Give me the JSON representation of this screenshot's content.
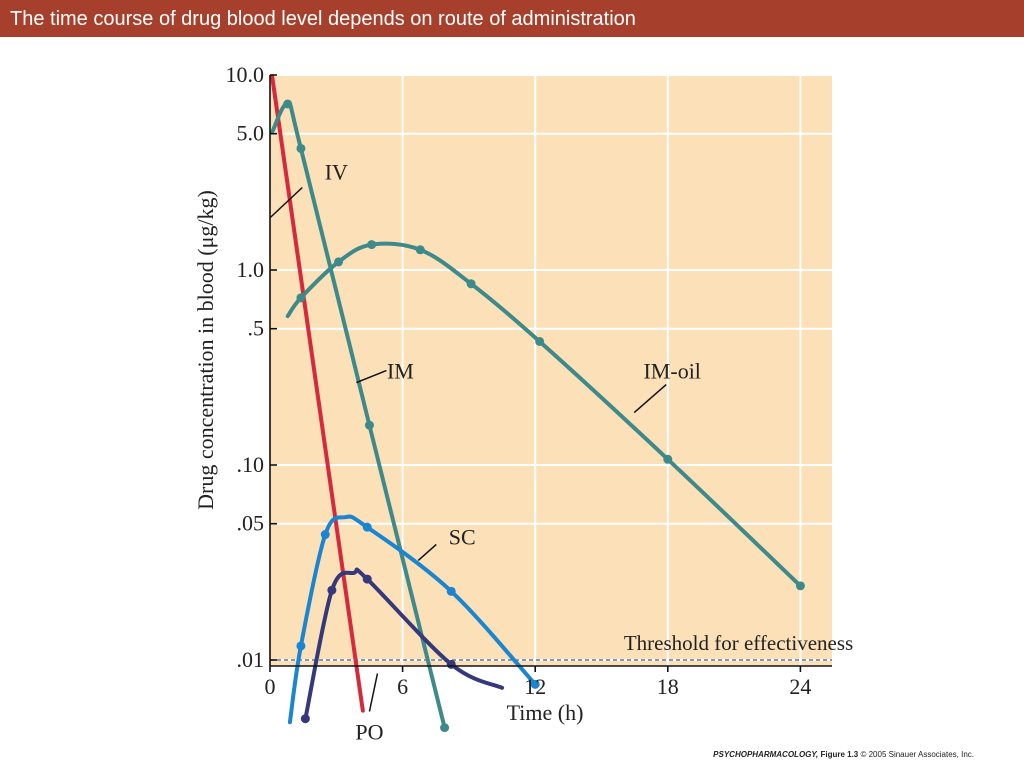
{
  "slide": {
    "title": "The time course of drug blood level depends on route of administration"
  },
  "credit": {
    "book": "PSYCHOPHARMACOLOGY,",
    "figure": "Figure 1.3",
    "copyright": "© 2005 Sinauer Associates, Inc."
  },
  "chart_data": {
    "type": "line",
    "xlabel": "Time (h)",
    "ylabel": "Drug concentration in blood (μg/kg)",
    "y_scale": "log",
    "xlim": [
      0,
      25
    ],
    "ylim": [
      0.003,
      10
    ],
    "x_ticks": [
      {
        "value": 0,
        "label": "0"
      },
      {
        "value": 6,
        "label": "6"
      },
      {
        "value": 12,
        "label": "12"
      },
      {
        "value": 18,
        "label": "18"
      },
      {
        "value": 24,
        "label": "24"
      }
    ],
    "y_ticks": [
      {
        "value": 10,
        "label": "10.0"
      },
      {
        "value": 5,
        "label": "5.0"
      },
      {
        "value": 1,
        "label": "1.0"
      },
      {
        "value": 0.5,
        "label": ".5"
      },
      {
        "value": 0.1,
        "label": ".10"
      },
      {
        "value": 0.05,
        "label": ".05"
      },
      {
        "value": 0.01,
        "label": ".01"
      }
    ],
    "grid": true,
    "threshold": {
      "value": 0.01,
      "label": "Threshold for effectiveness",
      "color": "#3a5a8a"
    },
    "colors": {
      "background": "#fbe0b8",
      "grid": "#ffffff",
      "IV": "#d42a3c",
      "IM": "#3e8a8a",
      "IM-oil": "#3e8a8a",
      "SC": "#1a85d0",
      "PO": "#35387a"
    },
    "series": [
      {
        "name": "IV",
        "line": [
          [
            0.1,
            9.8
          ],
          [
            4.2,
            0.0055
          ]
        ],
        "points": []
      },
      {
        "name": "IM",
        "line": [
          [
            0.1,
            5.1
          ],
          [
            0.8,
            7.1
          ],
          [
            1.4,
            4.2
          ],
          [
            4.5,
            0.16
          ],
          [
            7.9,
            0.0045
          ]
        ],
        "points": [
          [
            0.8,
            7.1
          ],
          [
            1.4,
            4.2
          ],
          [
            4.5,
            0.16
          ],
          [
            7.9,
            0.0045
          ]
        ]
      },
      {
        "name": "IM-oil",
        "line": [
          [
            0.8,
            0.58
          ],
          [
            1.4,
            0.72
          ],
          [
            3.1,
            1.1
          ],
          [
            4.6,
            1.35
          ],
          [
            6.8,
            1.27
          ],
          [
            9.1,
            0.85
          ],
          [
            12.2,
            0.43
          ],
          [
            18.0,
            0.107
          ],
          [
            24.0,
            0.024
          ]
        ],
        "points": [
          [
            1.4,
            0.72
          ],
          [
            3.1,
            1.1
          ],
          [
            4.6,
            1.35
          ],
          [
            6.8,
            1.27
          ],
          [
            9.1,
            0.85
          ],
          [
            12.2,
            0.43
          ],
          [
            18.0,
            0.107
          ],
          [
            24.0,
            0.024
          ]
        ]
      },
      {
        "name": "SC",
        "line": [
          [
            0.9,
            0.0048
          ],
          [
            1.4,
            0.0118
          ],
          [
            2.5,
            0.044
          ],
          [
            3.4,
            0.054
          ],
          [
            4.4,
            0.048
          ],
          [
            8.2,
            0.0225
          ],
          [
            12.0,
            0.0075
          ]
        ],
        "points": [
          [
            1.4,
            0.0118
          ],
          [
            2.5,
            0.044
          ],
          [
            4.4,
            0.048
          ],
          [
            8.2,
            0.0225
          ],
          [
            12.0,
            0.0075
          ]
        ]
      },
      {
        "name": "PO",
        "line": [
          [
            1.6,
            0.005
          ],
          [
            2.8,
            0.0228
          ],
          [
            3.8,
            0.028
          ],
          [
            4.4,
            0.026
          ],
          [
            8.2,
            0.0095
          ],
          [
            10.5,
            0.0072
          ]
        ],
        "points": [
          [
            1.6,
            0.005
          ],
          [
            2.8,
            0.0228
          ],
          [
            4.4,
            0.026
          ],
          [
            8.2,
            0.0095
          ]
        ]
      }
    ],
    "annotations": [
      {
        "text": "IV",
        "x": 3.0,
        "y": 3.2
      },
      {
        "text": "IM",
        "x": 5.9,
        "y": 0.305
      },
      {
        "text": "IM-oil",
        "x": 18.2,
        "y": 0.305
      },
      {
        "text": "SC",
        "x": 8.7,
        "y": 0.043
      },
      {
        "text": "PO",
        "x": 4.5,
        "y": 0.0043
      }
    ]
  }
}
